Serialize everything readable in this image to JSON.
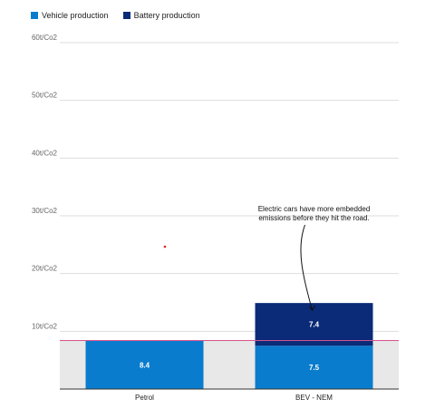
{
  "legend": [
    {
      "label": "Vehicle production",
      "color": "#0a7ccd"
    },
    {
      "label": "Battery production",
      "color": "#0b2a78"
    }
  ],
  "chart_data": {
    "type": "bar",
    "stacked": true,
    "categories": [
      "Petrol",
      "BEV - NEM"
    ],
    "series": [
      {
        "name": "Vehicle production",
        "values": [
          8.4,
          7.5
        ],
        "color": "#0a7ccd"
      },
      {
        "name": "Battery production",
        "values": [
          0,
          7.4
        ],
        "color": "#0b2a78"
      }
    ],
    "data_labels": [
      [
        "8.4",
        null
      ],
      [
        "7.5",
        "7.4"
      ]
    ],
    "y_ticks": [
      {
        "value": 10,
        "label": "10t/Co2"
      },
      {
        "value": 20,
        "label": "20t/Co2"
      },
      {
        "value": 30,
        "label": "30t/Co2"
      },
      {
        "value": 40,
        "label": "40t/Co2"
      },
      {
        "value": 50,
        "label": "50t/Co2"
      },
      {
        "value": 60,
        "label": "60t/Co2"
      }
    ],
    "ylim": [
      0,
      60
    ],
    "reference_line": 8.4,
    "reference_color": "#d7538f",
    "grid": true,
    "legend_position": "top-left",
    "annotation": {
      "lines": [
        "Electric cars have more embedded",
        "emissions before they hit the road."
      ],
      "target_category": "BEV - NEM"
    }
  }
}
